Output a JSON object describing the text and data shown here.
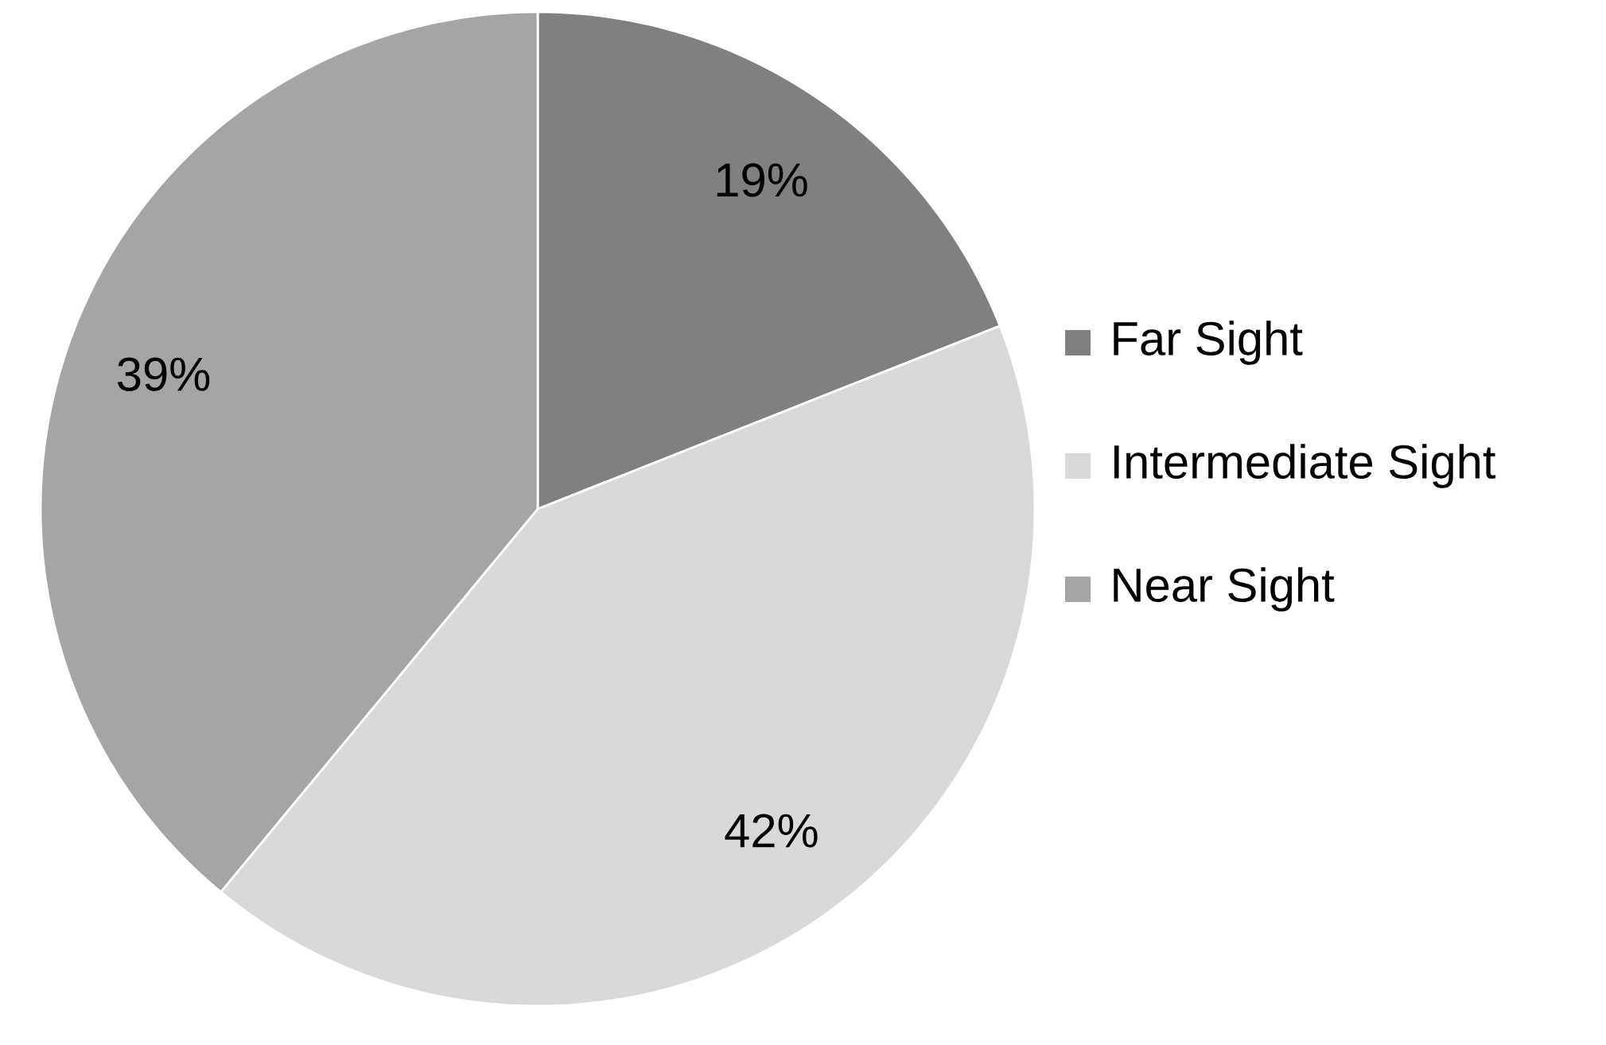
{
  "chart_data": {
    "type": "pie",
    "categories": [
      "Far Sight",
      "Intermediate Sight",
      "Near Sight"
    ],
    "values": [
      19,
      42,
      39
    ],
    "value_labels": [
      "19%",
      "42%",
      "39%"
    ],
    "colors": [
      "#808080",
      "#d9d9d9",
      "#a5a5a5"
    ],
    "legend": "right"
  }
}
